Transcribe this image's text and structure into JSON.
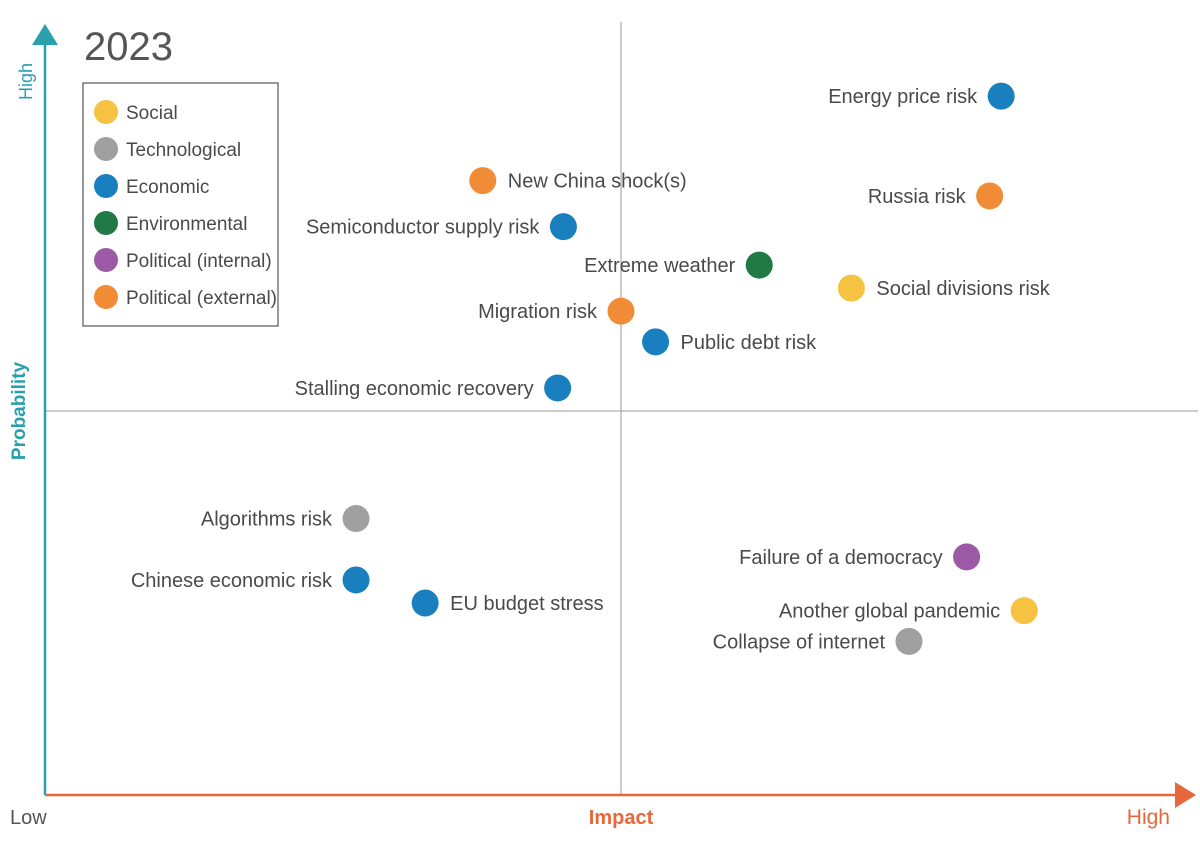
{
  "chart_data": {
    "type": "scatter",
    "title": "2023",
    "xlabel": "Impact",
    "ylabel": "Probability",
    "x_tick_labels": {
      "low": "Low",
      "high": "High"
    },
    "y_tick_labels": {
      "high": "High"
    },
    "xlim": [
      0,
      100
    ],
    "ylim": [
      0,
      100
    ],
    "quadrant_lines": {
      "x": 50,
      "y": 50
    },
    "legend_position": "top-left",
    "categories": [
      {
        "name": "Social",
        "color": "#f5c242"
      },
      {
        "name": "Technological",
        "color": "#a0a0a0"
      },
      {
        "name": "Economic",
        "color": "#1a7fbf"
      },
      {
        "name": "Environmental",
        "color": "#217a45"
      },
      {
        "name": "Political (internal)",
        "color": "#9b59a6"
      },
      {
        "name": "Political (external)",
        "color": "#ef8c35"
      }
    ],
    "points": [
      {
        "label": "Energy price risk",
        "category": "Economic",
        "x": 83,
        "y": 91,
        "label_side": "left"
      },
      {
        "label": "New China shock(s)",
        "category": "Political (external)",
        "x": 38,
        "y": 80,
        "label_side": "right"
      },
      {
        "label": "Russia risk",
        "category": "Political (external)",
        "x": 82,
        "y": 78,
        "label_side": "left"
      },
      {
        "label": "Semiconductor supply risk",
        "category": "Economic",
        "x": 45,
        "y": 74,
        "label_side": "left"
      },
      {
        "label": "Extreme weather",
        "category": "Environmental",
        "x": 62,
        "y": 69,
        "label_side": "left"
      },
      {
        "label": "Social divisions risk",
        "category": "Social",
        "x": 70,
        "y": 66,
        "label_side": "right"
      },
      {
        "label": "Migration risk",
        "category": "Political (external)",
        "x": 50,
        "y": 63,
        "label_side": "left"
      },
      {
        "label": "Public debt risk",
        "category": "Economic",
        "x": 53,
        "y": 59,
        "label_side": "right"
      },
      {
        "label": "Stalling economic recovery",
        "category": "Economic",
        "x": 44.5,
        "y": 53,
        "label_side": "left"
      },
      {
        "label": "Algorithms risk",
        "category": "Technological",
        "x": 27,
        "y": 36,
        "label_side": "left"
      },
      {
        "label": "Failure of a democracy",
        "category": "Political (internal)",
        "x": 80,
        "y": 31,
        "label_side": "left"
      },
      {
        "label": "Chinese economic risk",
        "category": "Economic",
        "x": 27,
        "y": 28,
        "label_side": "left"
      },
      {
        "label": "EU budget stress",
        "category": "Economic",
        "x": 33,
        "y": 25,
        "label_side": "right"
      },
      {
        "label": "Another global pandemic",
        "category": "Social",
        "x": 85,
        "y": 24,
        "label_side": "left"
      },
      {
        "label": "Collapse of internet",
        "category": "Technological",
        "x": 75,
        "y": 20,
        "label_side": "left"
      }
    ]
  }
}
